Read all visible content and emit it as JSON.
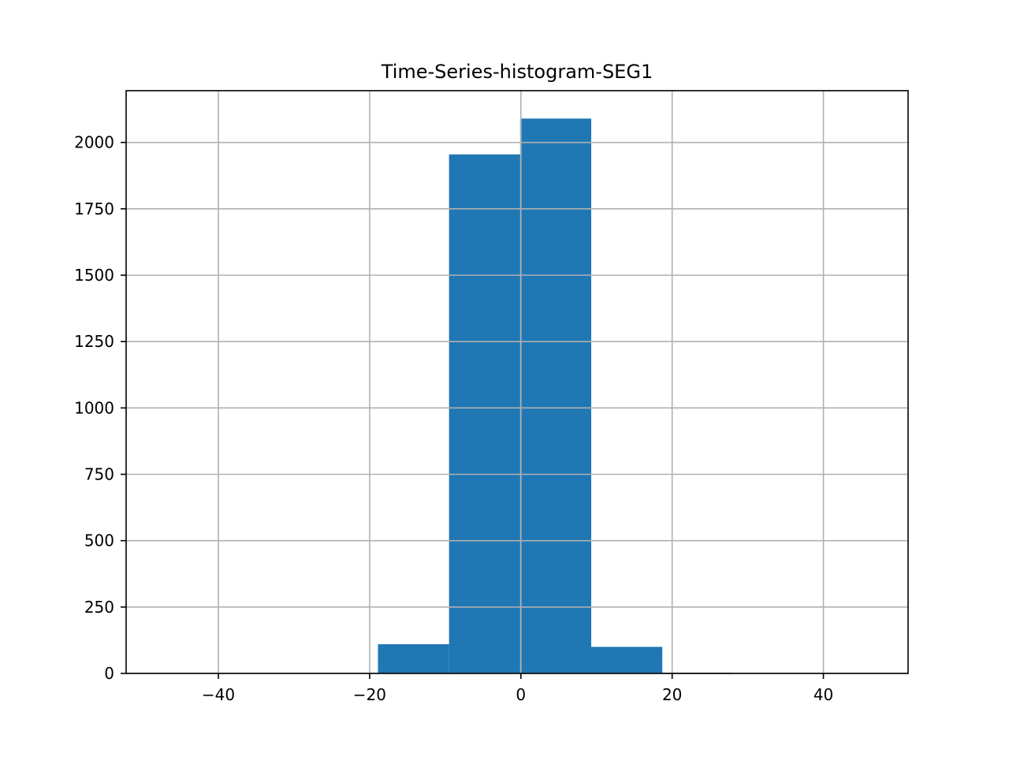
{
  "chart_data": {
    "type": "bar",
    "title": "Time-Series-histogram-SEG1",
    "xlabel": "",
    "ylabel": "",
    "bins": [
      {
        "x0": -47.5,
        "x1": -38.1,
        "count": 0
      },
      {
        "x0": -38.1,
        "x1": -28.7,
        "count": 0
      },
      {
        "x0": -28.7,
        "x1": -19.3,
        "count": 0
      },
      {
        "x0": -18.9,
        "x1": -9.5,
        "count": 110
      },
      {
        "x0": -9.5,
        "x1": -0.1,
        "count": 1955
      },
      {
        "x0": -0.1,
        "x1": 9.3,
        "count": 2090
      },
      {
        "x0": 9.3,
        "x1": 18.7,
        "count": 100
      },
      {
        "x0": 18.7,
        "x1": 28.1,
        "count": 3
      },
      {
        "x0": 28.1,
        "x1": 37.5,
        "count": 1
      },
      {
        "x0": 37.5,
        "x1": 46.9,
        "count": 1
      }
    ],
    "xlim": [
      -52.2,
      51.2
    ],
    "ylim": [
      0,
      2195
    ],
    "xticks": [
      -40,
      -20,
      0,
      20,
      40
    ],
    "xtick_labels": [
      "−40",
      "−20",
      "0",
      "20",
      "40"
    ],
    "yticks": [
      0,
      250,
      500,
      750,
      1000,
      1250,
      1500,
      1750,
      2000
    ],
    "ytick_labels": [
      "0",
      "250",
      "500",
      "750",
      "1000",
      "1250",
      "1500",
      "1750",
      "2000"
    ],
    "grid": true,
    "bar_color": "#1f77b4"
  }
}
